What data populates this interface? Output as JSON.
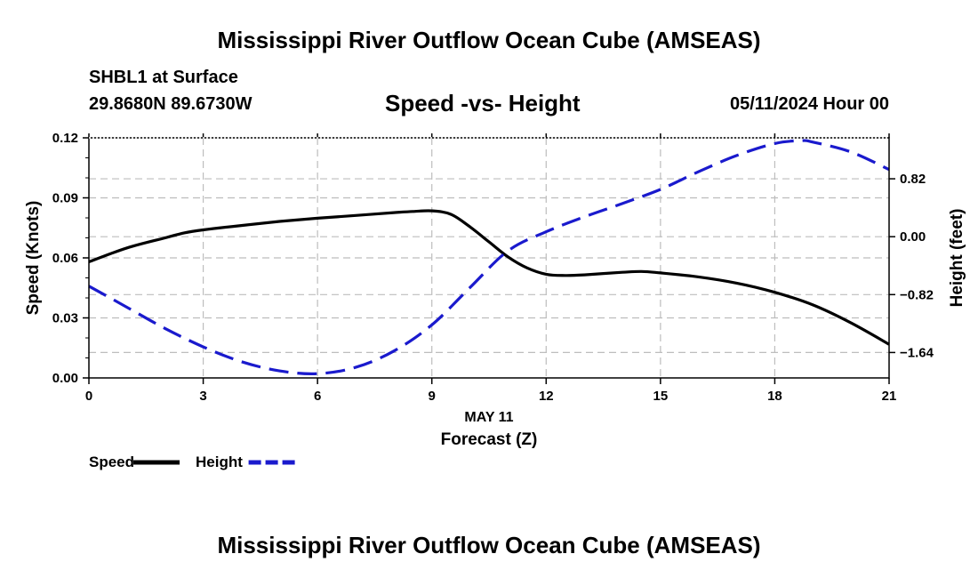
{
  "header": {
    "title": "Mississippi River Outflow Ocean Cube (AMSEAS)",
    "station": "SHBL1 at Surface",
    "coords": "29.8680N  89.6730W",
    "subtitle": "Speed -vs- Height",
    "datetime": "05/11/2024 Hour 00"
  },
  "footer": {
    "title": "Mississippi River Outflow Ocean Cube (AMSEAS)"
  },
  "chart_data": {
    "type": "line",
    "title": "Speed -vs- Height",
    "xlabel": "Forecast (Z)",
    "xlabel_date": "MAY 11",
    "ylabel": "Speed (Knots)",
    "y2label": "Height (feet)",
    "xlim": [
      0,
      21
    ],
    "ylim": [
      0,
      0.12
    ],
    "y2lim": [
      -2.0,
      1.4
    ],
    "x_ticks": [
      0,
      3,
      6,
      9,
      12,
      15,
      18,
      21
    ],
    "x_tick_labels": [
      "0",
      "3",
      "6",
      "9",
      "12",
      "15",
      "18",
      "21"
    ],
    "y_ticks": [
      0,
      0.03,
      0.06,
      0.09,
      0.12
    ],
    "y_tick_labels": [
      "0.00",
      "0.03",
      "0.06",
      "0.09",
      "0.12"
    ],
    "y2_ticks": [
      -1.64,
      -0.82,
      0,
      0.82
    ],
    "y2_tick_labels": [
      "−1.64",
      "−0.82",
      "0.00",
      "0.82"
    ],
    "grid": true,
    "series": [
      {
        "name": "Speed",
        "axis": "left",
        "color": "#000000",
        "dash": "solid",
        "x": [
          0,
          1,
          2,
          2.5,
          3,
          4,
          5,
          6,
          7,
          8,
          8.5,
          9,
          9.5,
          10,
          10.5,
          11,
          11.5,
          12,
          12.5,
          13,
          14,
          14.5,
          15,
          16,
          17,
          18,
          19,
          20,
          21
        ],
        "values": [
          0.058,
          0.065,
          0.07,
          0.0725,
          0.074,
          0.0762,
          0.0782,
          0.0798,
          0.0812,
          0.0826,
          0.0832,
          0.0835,
          0.0818,
          0.0755,
          0.068,
          0.0605,
          0.055,
          0.0518,
          0.0512,
          0.0515,
          0.0528,
          0.0532,
          0.0525,
          0.0505,
          0.0474,
          0.0428,
          0.0365,
          0.0275,
          0.0168
        ]
      },
      {
        "name": "Height",
        "axis": "right",
        "color": "#1a1acd",
        "dash": "dashed",
        "x": [
          0,
          1,
          2,
          3,
          4,
          5,
          6,
          7,
          8,
          9,
          10,
          11,
          12,
          13,
          14,
          15,
          16,
          17,
          18,
          18.7,
          19,
          20,
          21
        ],
        "values": [
          -0.7,
          -1.0,
          -1.3,
          -1.56,
          -1.77,
          -1.9,
          -1.94,
          -1.85,
          -1.62,
          -1.25,
          -0.72,
          -0.2,
          0.07,
          0.28,
          0.47,
          0.67,
          0.92,
          1.15,
          1.32,
          1.36,
          1.34,
          1.2,
          0.95
        ]
      }
    ],
    "legend": {
      "position": "bottom-left",
      "entries": [
        {
          "label": "Speed",
          "color": "#000000",
          "dash": "solid"
        },
        {
          "label": "Height",
          "color": "#1a1acd",
          "dash": "dashed"
        }
      ]
    }
  }
}
